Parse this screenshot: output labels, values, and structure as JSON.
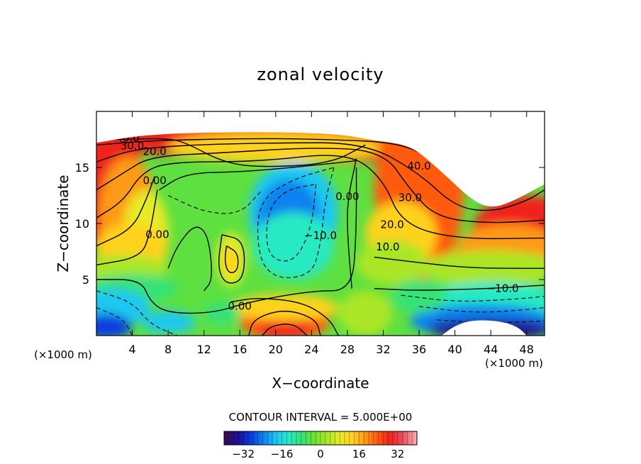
{
  "chart_data": {
    "type": "contour",
    "title": "zonal velocity",
    "xlabel": "X−coordinate",
    "ylabel": "Z−coordinate",
    "x_unit_note": "(×1000 m)",
    "z_unit_note": "(×1000 m)",
    "xlim": [
      0,
      50
    ],
    "ylim": [
      0,
      20
    ],
    "x_ticks": [
      4,
      8,
      12,
      16,
      20,
      24,
      28,
      32,
      36,
      40,
      44,
      48
    ],
    "y_ticks": [
      5,
      10,
      15
    ],
    "contour_interval_label": "CONTOUR INTERVAL = 5.000E+00",
    "contour_labels": [
      {
        "text": "40.0",
        "x": 3.5,
        "z": 17.3
      },
      {
        "text": "30.0",
        "x": 4.0,
        "z": 16.6
      },
      {
        "text": "20.0",
        "x": 6.5,
        "z": 16.1
      },
      {
        "text": "0.00",
        "x": 6.5,
        "z": 13.5
      },
      {
        "text": "0.00",
        "x": 6.8,
        "z": 8.7
      },
      {
        "text": "0.00",
        "x": 28.0,
        "z": 12.1
      },
      {
        "text": "−10.0",
        "x": 25.0,
        "z": 8.6
      },
      {
        "text": "0.00",
        "x": 16.0,
        "z": 2.3
      },
      {
        "text": "40.0",
        "x": 36.0,
        "z": 14.8
      },
      {
        "text": "30.0",
        "x": 35.0,
        "z": 12.0
      },
      {
        "text": "20.0",
        "x": 33.0,
        "z": 9.6
      },
      {
        "text": "10.0",
        "x": 32.5,
        "z": 7.6
      },
      {
        "text": "−10.0",
        "x": 45.3,
        "z": 3.9
      }
    ],
    "colorbar": {
      "range": [
        -40,
        40
      ],
      "ticks": [
        -32,
        -16,
        0,
        16,
        32
      ],
      "tick_labels": [
        "−32",
        "−16",
        "0",
        "16",
        "32"
      ]
    },
    "colors": {
      "palette": [
        "#3c0a55",
        "#1c1096",
        "#0a3cdc",
        "#0f82f0",
        "#1ec8f0",
        "#28eac3",
        "#34e278",
        "#6ee132",
        "#aae628",
        "#e6eb28",
        "#ffd21e",
        "#ff9a14",
        "#ff5a0f",
        "#f0231e",
        "#e8525a",
        "#f7a8ac"
      ]
    }
  }
}
